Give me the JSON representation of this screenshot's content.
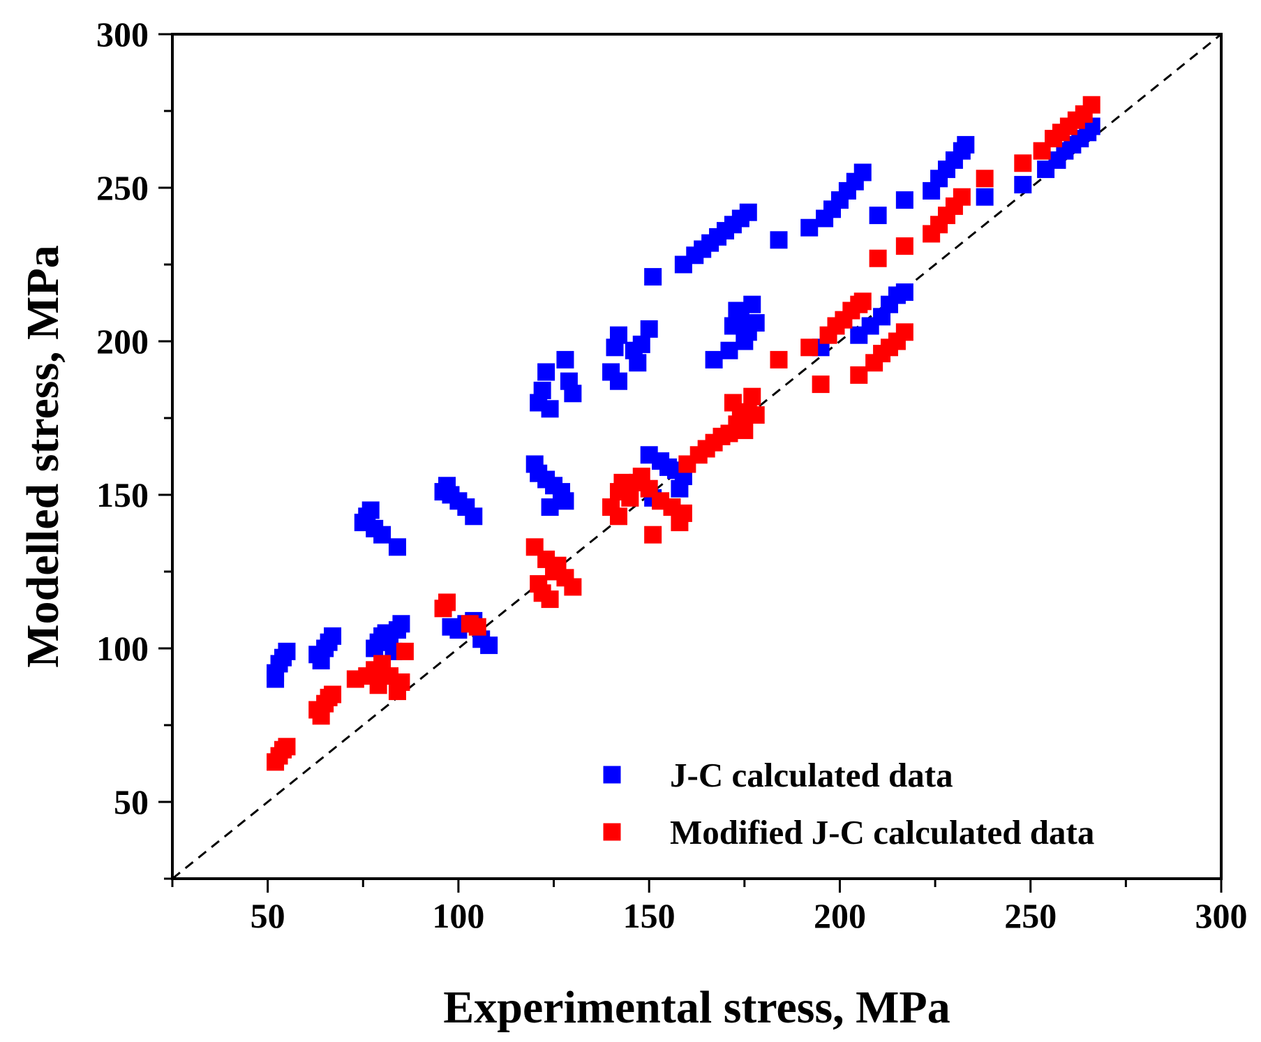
{
  "chart_data": {
    "type": "scatter",
    "title": "",
    "xlabel": "Experimental stress, MPa",
    "ylabel": "Modelled stress, MPa",
    "xlim": [
      25,
      300
    ],
    "ylim": [
      25,
      300
    ],
    "x_ticks": [
      "50",
      "100",
      "150",
      "200",
      "250",
      "300"
    ],
    "y_ticks": [
      "50",
      "100",
      "150",
      "200",
      "250",
      "300"
    ],
    "reference_line": {
      "style": "dashed",
      "from": [
        25,
        25
      ],
      "to": [
        300,
        300
      ]
    },
    "legend_position": "bottom-right",
    "series": [
      {
        "name": "J-C calculated data",
        "color": "#0000ff",
        "marker": "square",
        "points": [
          [
            52,
            90
          ],
          [
            52,
            92
          ],
          [
            53,
            95
          ],
          [
            54,
            97
          ],
          [
            55,
            99
          ],
          [
            63,
            98
          ],
          [
            64,
            96
          ],
          [
            65,
            100
          ],
          [
            66,
            102
          ],
          [
            67,
            104
          ],
          [
            75,
            141
          ],
          [
            76,
            143
          ],
          [
            77,
            145
          ],
          [
            78,
            139
          ],
          [
            80,
            137
          ],
          [
            84,
            133
          ],
          [
            78,
            100
          ],
          [
            79,
            102
          ],
          [
            80,
            104
          ],
          [
            81,
            105
          ],
          [
            82,
            102
          ],
          [
            83,
            99
          ],
          [
            84,
            106
          ],
          [
            85,
            108
          ],
          [
            96,
            151
          ],
          [
            97,
            153
          ],
          [
            98,
            150
          ],
          [
            100,
            148
          ],
          [
            102,
            146
          ],
          [
            104,
            143
          ],
          [
            98,
            107
          ],
          [
            100,
            106
          ],
          [
            102,
            108
          ],
          [
            104,
            109
          ],
          [
            106,
            103
          ],
          [
            108,
            101
          ],
          [
            120,
            160
          ],
          [
            121,
            157
          ],
          [
            123,
            155
          ],
          [
            125,
            153
          ],
          [
            127,
            151
          ],
          [
            124,
            146
          ],
          [
            128,
            148
          ],
          [
            121,
            180
          ],
          [
            122,
            184
          ],
          [
            123,
            190
          ],
          [
            124,
            178
          ],
          [
            128,
            194
          ],
          [
            129,
            187
          ],
          [
            130,
            183
          ],
          [
            140,
            190
          ],
          [
            141,
            198
          ],
          [
            142,
            202
          ],
          [
            142,
            187
          ],
          [
            146,
            197
          ],
          [
            147,
            193
          ],
          [
            148,
            199
          ],
          [
            150,
            204
          ],
          [
            150,
            163
          ],
          [
            151,
            149
          ],
          [
            153,
            161
          ],
          [
            155,
            159
          ],
          [
            157,
            158
          ],
          [
            158,
            152
          ],
          [
            159,
            156
          ],
          [
            151,
            221
          ],
          [
            159,
            225
          ],
          [
            162,
            228
          ],
          [
            164,
            230
          ],
          [
            166,
            232
          ],
          [
            168,
            234
          ],
          [
            170,
            236
          ],
          [
            172,
            238
          ],
          [
            174,
            240
          ],
          [
            176,
            242
          ],
          [
            167,
            194
          ],
          [
            171,
            197
          ],
          [
            172,
            205
          ],
          [
            173,
            210
          ],
          [
            174,
            207
          ],
          [
            175,
            200
          ],
          [
            176,
            203
          ],
          [
            177,
            212
          ],
          [
            178,
            206
          ],
          [
            184,
            233
          ],
          [
            192,
            237
          ],
          [
            196,
            240
          ],
          [
            198,
            243
          ],
          [
            200,
            246
          ],
          [
            202,
            249
          ],
          [
            204,
            252
          ],
          [
            206,
            255
          ],
          [
            195,
            198
          ],
          [
            205,
            202
          ],
          [
            208,
            205
          ],
          [
            210,
            241
          ],
          [
            211,
            208
          ],
          [
            213,
            212
          ],
          [
            215,
            215
          ],
          [
            217,
            216
          ],
          [
            217,
            246
          ],
          [
            224,
            249
          ],
          [
            226,
            253
          ],
          [
            228,
            256
          ],
          [
            230,
            259
          ],
          [
            232,
            262
          ],
          [
            233,
            264
          ],
          [
            238,
            247
          ],
          [
            248,
            251
          ],
          [
            254,
            256
          ],
          [
            257,
            259
          ],
          [
            259,
            262
          ],
          [
            261,
            264
          ],
          [
            263,
            266
          ],
          [
            265,
            268
          ],
          [
            266,
            270
          ]
        ]
      },
      {
        "name": "Modified J-C calculated data",
        "color": "#ff0000",
        "marker": "square",
        "points": [
          [
            52,
            63
          ],
          [
            53,
            65
          ],
          [
            54,
            67
          ],
          [
            55,
            68
          ],
          [
            63,
            80
          ],
          [
            64,
            78
          ],
          [
            65,
            82
          ],
          [
            66,
            84
          ],
          [
            67,
            85
          ],
          [
            73,
            90
          ],
          [
            76,
            91
          ],
          [
            78,
            93
          ],
          [
            79,
            88
          ],
          [
            80,
            95
          ],
          [
            82,
            91
          ],
          [
            84,
            86
          ],
          [
            85,
            89
          ],
          [
            86,
            99
          ],
          [
            96,
            113
          ],
          [
            97,
            115
          ],
          [
            103,
            108
          ],
          [
            105,
            107
          ],
          [
            120,
            133
          ],
          [
            121,
            121
          ],
          [
            122,
            118
          ],
          [
            123,
            129
          ],
          [
            124,
            116
          ],
          [
            125,
            125
          ],
          [
            126,
            127
          ],
          [
            128,
            123
          ],
          [
            130,
            120
          ],
          [
            140,
            146
          ],
          [
            142,
            143
          ],
          [
            142,
            151
          ],
          [
            143,
            154
          ],
          [
            145,
            149
          ],
          [
            147,
            154
          ],
          [
            148,
            156
          ],
          [
            150,
            152
          ],
          [
            151,
            137
          ],
          [
            153,
            148
          ],
          [
            156,
            146
          ],
          [
            158,
            141
          ],
          [
            159,
            144
          ],
          [
            160,
            160
          ],
          [
            163,
            163
          ],
          [
            165,
            165
          ],
          [
            167,
            167
          ],
          [
            169,
            169
          ],
          [
            171,
            170
          ],
          [
            172,
            180
          ],
          [
            173,
            173
          ],
          [
            174,
            175
          ],
          [
            175,
            171
          ],
          [
            176,
            177
          ],
          [
            177,
            182
          ],
          [
            178,
            176
          ],
          [
            184,
            194
          ],
          [
            192,
            198
          ],
          [
            195,
            186
          ],
          [
            197,
            202
          ],
          [
            199,
            205
          ],
          [
            201,
            207
          ],
          [
            203,
            210
          ],
          [
            205,
            212
          ],
          [
            206,
            213
          ],
          [
            205,
            189
          ],
          [
            209,
            193
          ],
          [
            211,
            196
          ],
          [
            213,
            198
          ],
          [
            215,
            200
          ],
          [
            217,
            203
          ],
          [
            210,
            227
          ],
          [
            217,
            231
          ],
          [
            224,
            235
          ],
          [
            226,
            238
          ],
          [
            228,
            241
          ],
          [
            230,
            244
          ],
          [
            232,
            247
          ],
          [
            238,
            253
          ],
          [
            248,
            258
          ],
          [
            253,
            262
          ],
          [
            256,
            266
          ],
          [
            258,
            268
          ],
          [
            260,
            270
          ],
          [
            262,
            272
          ],
          [
            264,
            274
          ],
          [
            266,
            277
          ]
        ]
      }
    ]
  }
}
